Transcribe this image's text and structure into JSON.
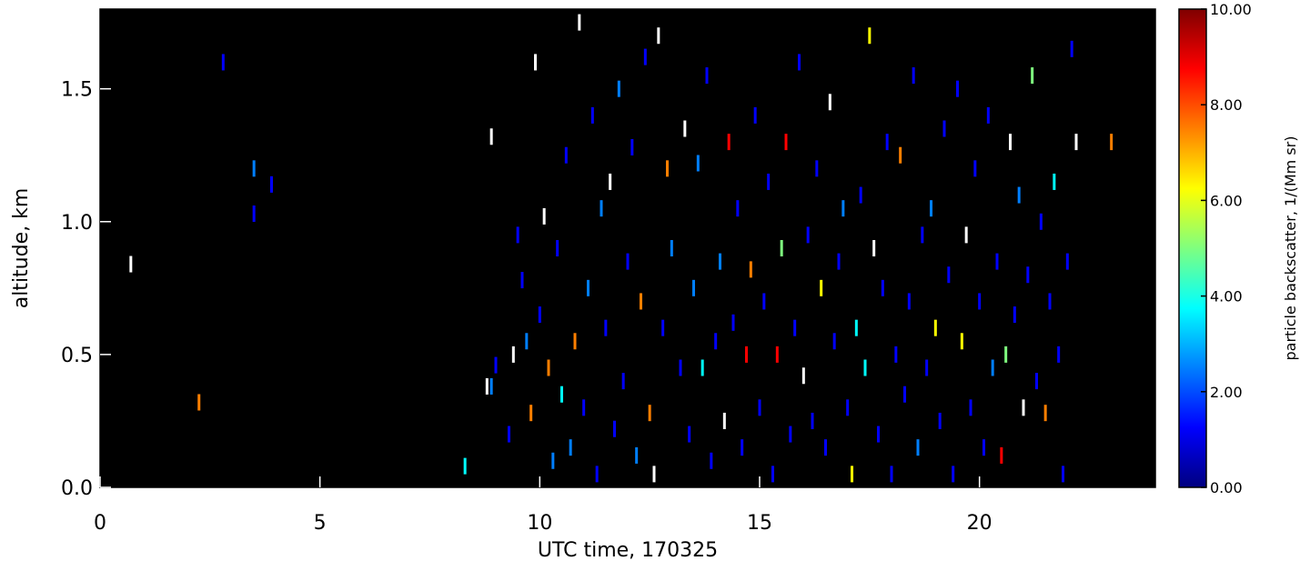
{
  "chart_data": [
    {
      "type": "heatmap",
      "title": "",
      "xlabel": "UTC time, 170325",
      "ylabel": "altitude, km",
      "xlim": [
        0,
        24
      ],
      "ylim": [
        0,
        1.8
      ],
      "xticks": [
        "0",
        "5",
        "10",
        "15",
        "20"
      ],
      "xtick_values": [
        0,
        5,
        10,
        15,
        20
      ],
      "yticks": [
        "0.0",
        "0.5",
        "1.0",
        "1.5"
      ],
      "ytick_values": [
        0.0,
        0.5,
        1.0,
        1.5
      ],
      "background": "#000000",
      "colorbar": {
        "label": "particle backscatter, 1/(Mm sr)",
        "range": [
          0,
          10
        ],
        "ticks": [
          "0.00",
          "2.00",
          "4.00",
          "6.00",
          "8.00",
          "10.00"
        ],
        "tick_values": [
          0,
          2,
          4,
          6,
          8,
          10
        ],
        "colormap": [
          "#00007f",
          "#0000ff",
          "#007fff",
          "#00ffff",
          "#7fff7f",
          "#ffff00",
          "#ff7f00",
          "#ff0000",
          "#7f0000"
        ]
      },
      "points": [
        [
          0.7,
          0.84,
          10
        ],
        [
          2.25,
          0.32,
          8
        ],
        [
          2.8,
          1.6,
          1
        ],
        [
          3.5,
          1.2,
          3
        ],
        [
          3.5,
          1.03,
          1
        ],
        [
          3.9,
          1.14,
          1
        ],
        [
          8.3,
          0.08,
          4
        ],
        [
          8.8,
          0.38,
          10
        ],
        [
          8.9,
          0.38,
          2
        ],
        [
          8.9,
          1.32,
          10
        ],
        [
          9.0,
          0.46,
          1
        ],
        [
          9.3,
          0.2,
          1
        ],
        [
          9.4,
          0.5,
          10
        ],
        [
          9.5,
          0.95,
          1
        ],
        [
          9.6,
          0.78,
          1
        ],
        [
          9.7,
          0.55,
          2
        ],
        [
          9.8,
          0.28,
          8
        ],
        [
          9.9,
          1.6,
          10
        ],
        [
          10.0,
          0.65,
          1
        ],
        [
          10.1,
          1.02,
          10
        ],
        [
          10.2,
          0.45,
          7
        ],
        [
          10.3,
          0.1,
          3
        ],
        [
          10.4,
          0.9,
          1
        ],
        [
          10.5,
          0.35,
          4
        ],
        [
          10.6,
          1.25,
          1
        ],
        [
          10.7,
          0.15,
          2
        ],
        [
          10.8,
          0.55,
          8
        ],
        [
          10.9,
          1.75,
          10
        ],
        [
          11.0,
          0.3,
          1
        ],
        [
          11.1,
          0.75,
          2
        ],
        [
          11.2,
          1.4,
          1
        ],
        [
          11.3,
          0.05,
          1
        ],
        [
          11.4,
          1.05,
          3
        ],
        [
          11.5,
          0.6,
          1
        ],
        [
          11.6,
          1.15,
          10
        ],
        [
          11.7,
          0.22,
          1
        ],
        [
          11.8,
          1.5,
          2
        ],
        [
          11.9,
          0.4,
          1
        ],
        [
          12.0,
          0.85,
          1
        ],
        [
          12.1,
          1.28,
          1
        ],
        [
          12.2,
          0.12,
          3
        ],
        [
          12.3,
          0.7,
          8
        ],
        [
          12.4,
          1.62,
          1
        ],
        [
          12.5,
          0.28,
          7
        ],
        [
          12.6,
          0.05,
          10
        ],
        [
          12.7,
          1.7,
          10
        ],
        [
          12.8,
          0.6,
          1
        ],
        [
          12.9,
          1.2,
          7
        ],
        [
          13.0,
          0.9,
          2
        ],
        [
          13.2,
          0.45,
          1
        ],
        [
          13.3,
          1.35,
          10
        ],
        [
          13.4,
          0.2,
          1
        ],
        [
          13.5,
          0.75,
          2
        ],
        [
          13.6,
          1.22,
          2
        ],
        [
          13.7,
          0.45,
          4
        ],
        [
          13.8,
          1.55,
          1
        ],
        [
          13.9,
          0.1,
          1
        ],
        [
          14.0,
          0.55,
          1
        ],
        [
          14.1,
          0.85,
          2
        ],
        [
          14.2,
          0.25,
          10
        ],
        [
          14.3,
          1.3,
          9
        ],
        [
          14.4,
          0.62,
          1
        ],
        [
          14.5,
          1.05,
          1
        ],
        [
          14.6,
          0.15,
          1
        ],
        [
          14.7,
          0.5,
          9
        ],
        [
          14.8,
          0.82,
          8
        ],
        [
          14.9,
          1.4,
          1
        ],
        [
          15.0,
          0.3,
          1
        ],
        [
          15.1,
          0.7,
          1
        ],
        [
          15.2,
          1.15,
          1
        ],
        [
          15.3,
          0.05,
          1
        ],
        [
          15.4,
          0.5,
          9
        ],
        [
          15.5,
          0.9,
          5
        ],
        [
          15.6,
          1.3,
          9
        ],
        [
          15.7,
          0.2,
          1
        ],
        [
          15.8,
          0.6,
          1
        ],
        [
          15.9,
          1.6,
          1
        ],
        [
          16.0,
          0.42,
          10
        ],
        [
          16.1,
          0.95,
          1
        ],
        [
          16.2,
          0.25,
          1
        ],
        [
          16.3,
          1.2,
          1
        ],
        [
          16.4,
          0.75,
          6
        ],
        [
          16.5,
          0.15,
          1
        ],
        [
          16.6,
          1.45,
          10
        ],
        [
          16.7,
          0.55,
          1
        ],
        [
          16.8,
          0.85,
          1
        ],
        [
          16.9,
          1.05,
          2
        ],
        [
          17.0,
          0.3,
          1
        ],
        [
          17.1,
          0.05,
          6
        ],
        [
          17.2,
          0.6,
          4
        ],
        [
          17.3,
          1.1,
          1
        ],
        [
          17.4,
          0.45,
          4
        ],
        [
          17.5,
          1.7,
          6
        ],
        [
          17.6,
          0.9,
          10
        ],
        [
          17.7,
          0.2,
          1
        ],
        [
          17.8,
          0.75,
          1
        ],
        [
          17.9,
          1.3,
          1
        ],
        [
          18.0,
          0.05,
          1
        ],
        [
          18.1,
          0.5,
          1
        ],
        [
          18.2,
          1.25,
          7
        ],
        [
          18.3,
          0.35,
          1
        ],
        [
          18.4,
          0.7,
          1
        ],
        [
          18.5,
          1.55,
          1
        ],
        [
          18.6,
          0.15,
          2
        ],
        [
          18.7,
          0.95,
          1
        ],
        [
          18.8,
          0.45,
          1
        ],
        [
          18.9,
          1.05,
          2
        ],
        [
          19.0,
          0.6,
          6
        ],
        [
          19.1,
          0.25,
          1
        ],
        [
          19.2,
          1.35,
          1
        ],
        [
          19.3,
          0.8,
          1
        ],
        [
          19.4,
          0.05,
          1
        ],
        [
          19.5,
          1.5,
          1
        ],
        [
          19.6,
          0.55,
          6
        ],
        [
          19.7,
          0.95,
          10
        ],
        [
          19.8,
          0.3,
          1
        ],
        [
          19.9,
          1.2,
          1
        ],
        [
          20.0,
          0.7,
          1
        ],
        [
          20.1,
          0.15,
          1
        ],
        [
          20.2,
          1.4,
          1
        ],
        [
          20.3,
          0.45,
          2
        ],
        [
          20.4,
          0.85,
          1
        ],
        [
          20.5,
          0.12,
          9
        ],
        [
          20.6,
          0.5,
          5
        ],
        [
          20.7,
          1.3,
          10
        ],
        [
          20.8,
          0.65,
          1
        ],
        [
          20.9,
          1.1,
          2
        ],
        [
          21.0,
          0.3,
          10
        ],
        [
          21.1,
          0.8,
          1
        ],
        [
          21.2,
          1.55,
          5
        ],
        [
          21.3,
          0.4,
          1
        ],
        [
          21.4,
          1.0,
          1
        ],
        [
          21.5,
          0.28,
          8
        ],
        [
          21.6,
          0.7,
          1
        ],
        [
          21.7,
          1.15,
          4
        ],
        [
          21.8,
          0.5,
          1
        ],
        [
          21.9,
          0.05,
          1
        ],
        [
          22.0,
          0.85,
          1
        ],
        [
          22.1,
          1.65,
          1
        ],
        [
          22.2,
          1.3,
          10
        ],
        [
          23.0,
          1.3,
          8
        ]
      ]
    }
  ]
}
